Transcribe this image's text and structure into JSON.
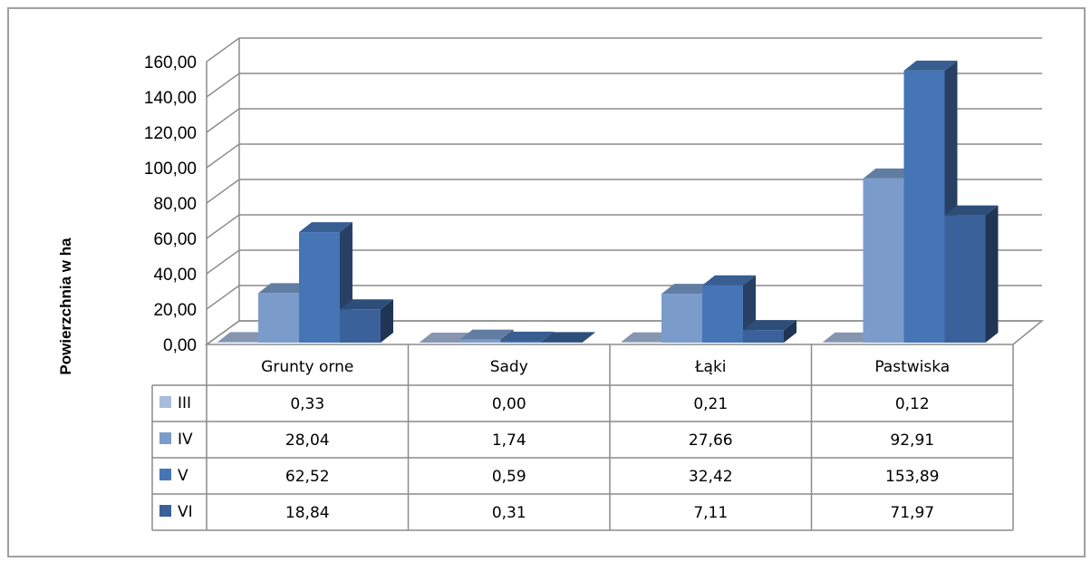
{
  "chart_data": {
    "type": "bar",
    "variant": "3d-clustered-column-with-data-table",
    "title": "",
    "xlabel": "",
    "ylabel": "Powierzchnia w ha",
    "ylim": [
      0,
      160
    ],
    "ytick_step": 20,
    "ytick_labels": [
      "0,00",
      "20,00",
      "40,00",
      "60,00",
      "80,00",
      "100,00",
      "120,00",
      "140,00",
      "160,00"
    ],
    "grid": true,
    "legend": "data-table-left",
    "categories": [
      "Grunty orne",
      "Sady",
      "Łąki",
      "Pastwiska"
    ],
    "series": [
      {
        "name": "III",
        "color": "#a8bcdc",
        "values": [
          0.33,
          0.0,
          0.21,
          0.12
        ],
        "labels": [
          "0,33",
          "0,00",
          "0,21",
          "0,12"
        ]
      },
      {
        "name": "IV",
        "color": "#7b9ccb",
        "values": [
          28.04,
          1.74,
          27.66,
          92.91
        ],
        "labels": [
          "28,04",
          "1,74",
          "27,66",
          "92,91"
        ]
      },
      {
        "name": "V",
        "color": "#4675b6",
        "values": [
          62.52,
          0.59,
          32.42,
          153.89
        ],
        "labels": [
          "62,52",
          "0,59",
          "32,42",
          "153,89"
        ]
      },
      {
        "name": "VI",
        "color": "#3a6199",
        "values": [
          18.84,
          0.31,
          7.11,
          71.97
        ],
        "labels": [
          "18,84",
          "0,31",
          "7,11",
          "71,97"
        ]
      }
    ]
  }
}
